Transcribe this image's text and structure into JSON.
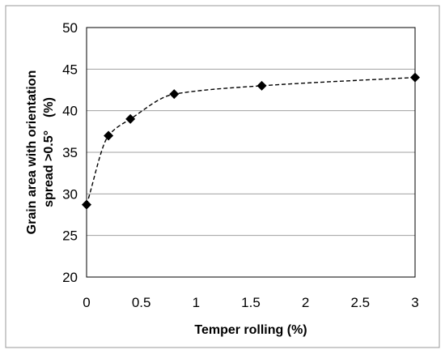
{
  "chart_data": {
    "type": "scatter",
    "title": "",
    "xlabel": "Temper rolling (%)",
    "ylabel_lines": [
      "Grain area with orientation",
      "spread >0.5°　(%)"
    ],
    "x": [
      0,
      0.2,
      0.4,
      0.8,
      1.6,
      3.0
    ],
    "y": [
      28.7,
      37.0,
      39.0,
      42.0,
      43.0,
      44.0
    ],
    "xlim": [
      0,
      3
    ],
    "ylim": [
      20,
      50
    ],
    "xticks": [
      "0",
      "0.5",
      "1",
      "1.5",
      "2",
      "2.5",
      "3"
    ],
    "yticks": [
      "20",
      "25",
      "30",
      "35",
      "40",
      "45",
      "50"
    ],
    "grid": "horizontal",
    "legend": "none",
    "marker": "diamond",
    "fit_line": "dashed",
    "colors": {
      "marker": "#000000",
      "grid": "#a0a0a0",
      "fit": "#000000"
    }
  }
}
